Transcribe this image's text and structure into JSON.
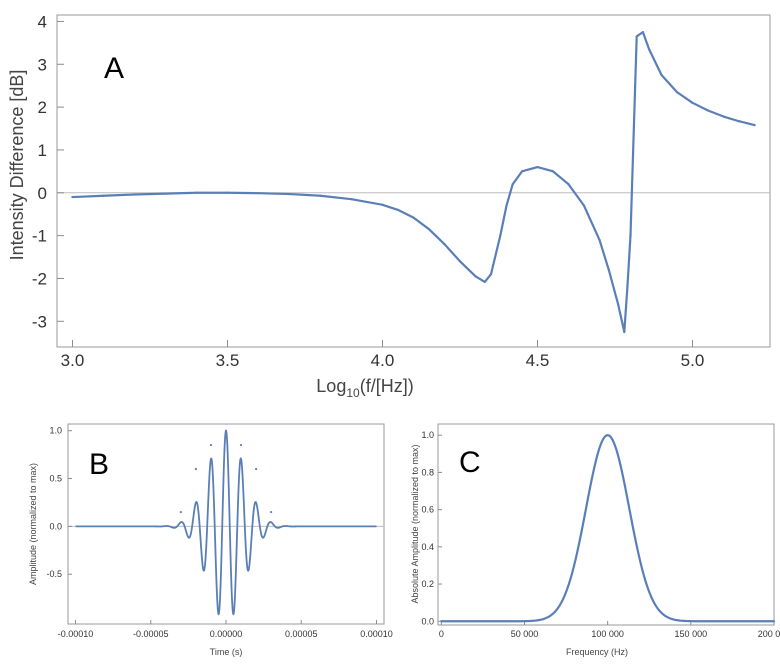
{
  "chart_data": [
    {
      "id": "A",
      "panel_label": "A",
      "type": "line",
      "xlabel": "Log",
      "xlabel_sub": "10",
      "xlabel_tail": "(f/[Hz])",
      "ylabel": "Intensity Difference [dB]",
      "xlim": [
        2.95,
        5.25
      ],
      "ylim": [
        -3.6,
        4.15
      ],
      "xticks": [
        3.0,
        3.5,
        4.0,
        4.5,
        5.0
      ],
      "xtick_labels": [
        "3.0",
        "3.5",
        "4.0",
        "4.5",
        "5.0"
      ],
      "yticks": [
        -3,
        -2,
        -1,
        0,
        1,
        2,
        3,
        4
      ],
      "ytick_labels": [
        "-3",
        "-2",
        "-1",
        "0",
        "1",
        "2",
        "3",
        "4"
      ],
      "zero_line": true,
      "series": [
        {
          "color": "#5a7fb8",
          "x": [
            3.0,
            3.1,
            3.2,
            3.3,
            3.4,
            3.5,
            3.6,
            3.7,
            3.8,
            3.9,
            4.0,
            4.05,
            4.1,
            4.15,
            4.2,
            4.25,
            4.3,
            4.33,
            4.35,
            4.38,
            4.4,
            4.42,
            4.45,
            4.5,
            4.55,
            4.6,
            4.65,
            4.7,
            4.73,
            4.76,
            4.78,
            4.79,
            4.8,
            4.82,
            4.84,
            4.86,
            4.9,
            4.95,
            5.0,
            5.05,
            5.1,
            5.15,
            5.2
          ],
          "y": [
            -0.1,
            -0.07,
            -0.04,
            -0.02,
            0.0,
            0.0,
            -0.01,
            -0.03,
            -0.07,
            -0.15,
            -0.28,
            -0.4,
            -0.58,
            -0.85,
            -1.2,
            -1.6,
            -1.95,
            -2.08,
            -1.9,
            -1.0,
            -0.3,
            0.2,
            0.5,
            0.6,
            0.5,
            0.2,
            -0.3,
            -1.1,
            -1.8,
            -2.6,
            -3.25,
            -2.2,
            -1.0,
            3.65,
            3.75,
            3.35,
            2.75,
            2.35,
            2.1,
            1.92,
            1.78,
            1.67,
            1.58
          ]
        }
      ]
    },
    {
      "id": "B",
      "panel_label": "B",
      "type": "line",
      "xlabel": "Time (s)",
      "ylabel": "Amplitude (normalized to max)",
      "xlim": [
        -0.000105,
        0.000105
      ],
      "ylim": [
        -1.02,
        1.07
      ],
      "xticks": [
        -0.0001,
        -5e-05,
        0,
        5e-05,
        0.0001
      ],
      "xtick_labels": [
        "-0.00010",
        "-0.00005",
        "0.00000",
        "0.00005",
        "0.00010"
      ],
      "yticks": [
        -0.5,
        0,
        0.5,
        1.0
      ],
      "ytick_labels": [
        "-0.5",
        "0.0",
        "0.5",
        "1.0"
      ],
      "zero_line": true,
      "signal": {
        "carrier_hz": 100000,
        "gauss_sigma_s": 1.2e-05,
        "x_min": -0.0001,
        "x_max": 0.0001
      },
      "series": [
        {
          "color": "#5a7fb8",
          "note_peaks": {
            "t": [
              -3e-05,
              -2e-05,
              -1e-05,
              0,
              1e-05,
              2e-05,
              3e-05
            ],
            "y": [
              0.15,
              0.6,
              0.85,
              1.0,
              0.85,
              0.6,
              0.15
            ]
          }
        }
      ]
    },
    {
      "id": "C",
      "panel_label": "C",
      "type": "line",
      "xlabel": "Frequency (Hz)",
      "ylabel": "Absolute Amplitude (normalized to max)",
      "xlim": [
        -2000,
        200000
      ],
      "ylim": [
        -0.02,
        1.06
      ],
      "xticks": [
        0,
        50000,
        100000,
        150000,
        200000
      ],
      "xtick_labels": [
        "0",
        "50 000",
        "100 000",
        "150 000",
        "200 000"
      ],
      "yticks": [
        0.0,
        0.2,
        0.4,
        0.6,
        0.8,
        1.0
      ],
      "ytick_labels": [
        "0.0",
        "0.2",
        "0.4",
        "0.6",
        "0.8",
        "1.0"
      ],
      "zero_line": false,
      "signal": {
        "center_hz": 100000,
        "sigma_hz": 13000,
        "x_min": 0,
        "x_max": 200000
      },
      "series": [
        {
          "color": "#5a7fb8",
          "peak_x": 100000,
          "peak_y": 1.0
        }
      ]
    }
  ]
}
